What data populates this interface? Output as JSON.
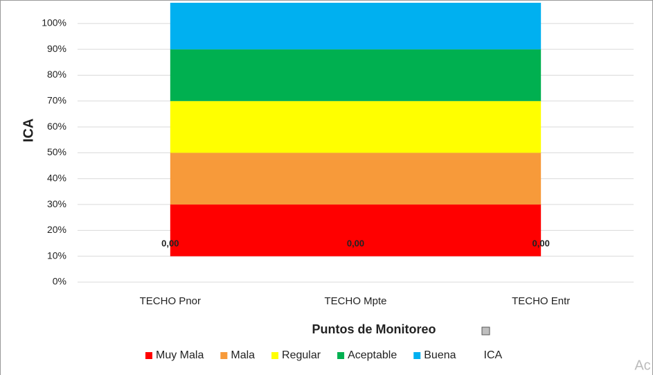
{
  "chart_data": {
    "type": "band",
    "y_label": "ICA",
    "x_label": "Puntos de Monitoreo",
    "categories": [
      "TECHO Pnor",
      "TECHO Mpte",
      "TECHO Entr"
    ],
    "bands": [
      {
        "name": "Muy Mala",
        "color": "#ff0000",
        "range": [
          10,
          30
        ]
      },
      {
        "name": "Mala",
        "color": "#f79a3a",
        "range": [
          30,
          50
        ]
      },
      {
        "name": "Regular",
        "color": "#ffff00",
        "range": [
          50,
          70
        ]
      },
      {
        "name": "Aceptable",
        "color": "#00b050",
        "range": [
          70,
          90
        ]
      },
      {
        "name": "Buena",
        "color": "#00b0f0",
        "range": [
          90,
          108
        ]
      }
    ],
    "series": [
      {
        "name": "ICA",
        "values": [
          0,
          0,
          0
        ],
        "value_labels": [
          "0,00",
          "0,00",
          "0,00"
        ]
      }
    ],
    "ylim": [
      0,
      108
    ],
    "yticks": [
      {
        "value": 0,
        "label": "0%"
      },
      {
        "value": 10,
        "label": "10%"
      },
      {
        "value": 20,
        "label": "20%"
      },
      {
        "value": 30,
        "label": "30%"
      },
      {
        "value": 40,
        "label": "40%"
      },
      {
        "value": 50,
        "label": "50%"
      },
      {
        "value": 60,
        "label": "60%"
      },
      {
        "value": 70,
        "label": "70%"
      },
      {
        "value": 80,
        "label": "80%"
      },
      {
        "value": 90,
        "label": "90%"
      },
      {
        "value": 100,
        "label": "100%"
      }
    ],
    "grid": true,
    "legend": "bottom",
    "watermark": "Ac"
  }
}
